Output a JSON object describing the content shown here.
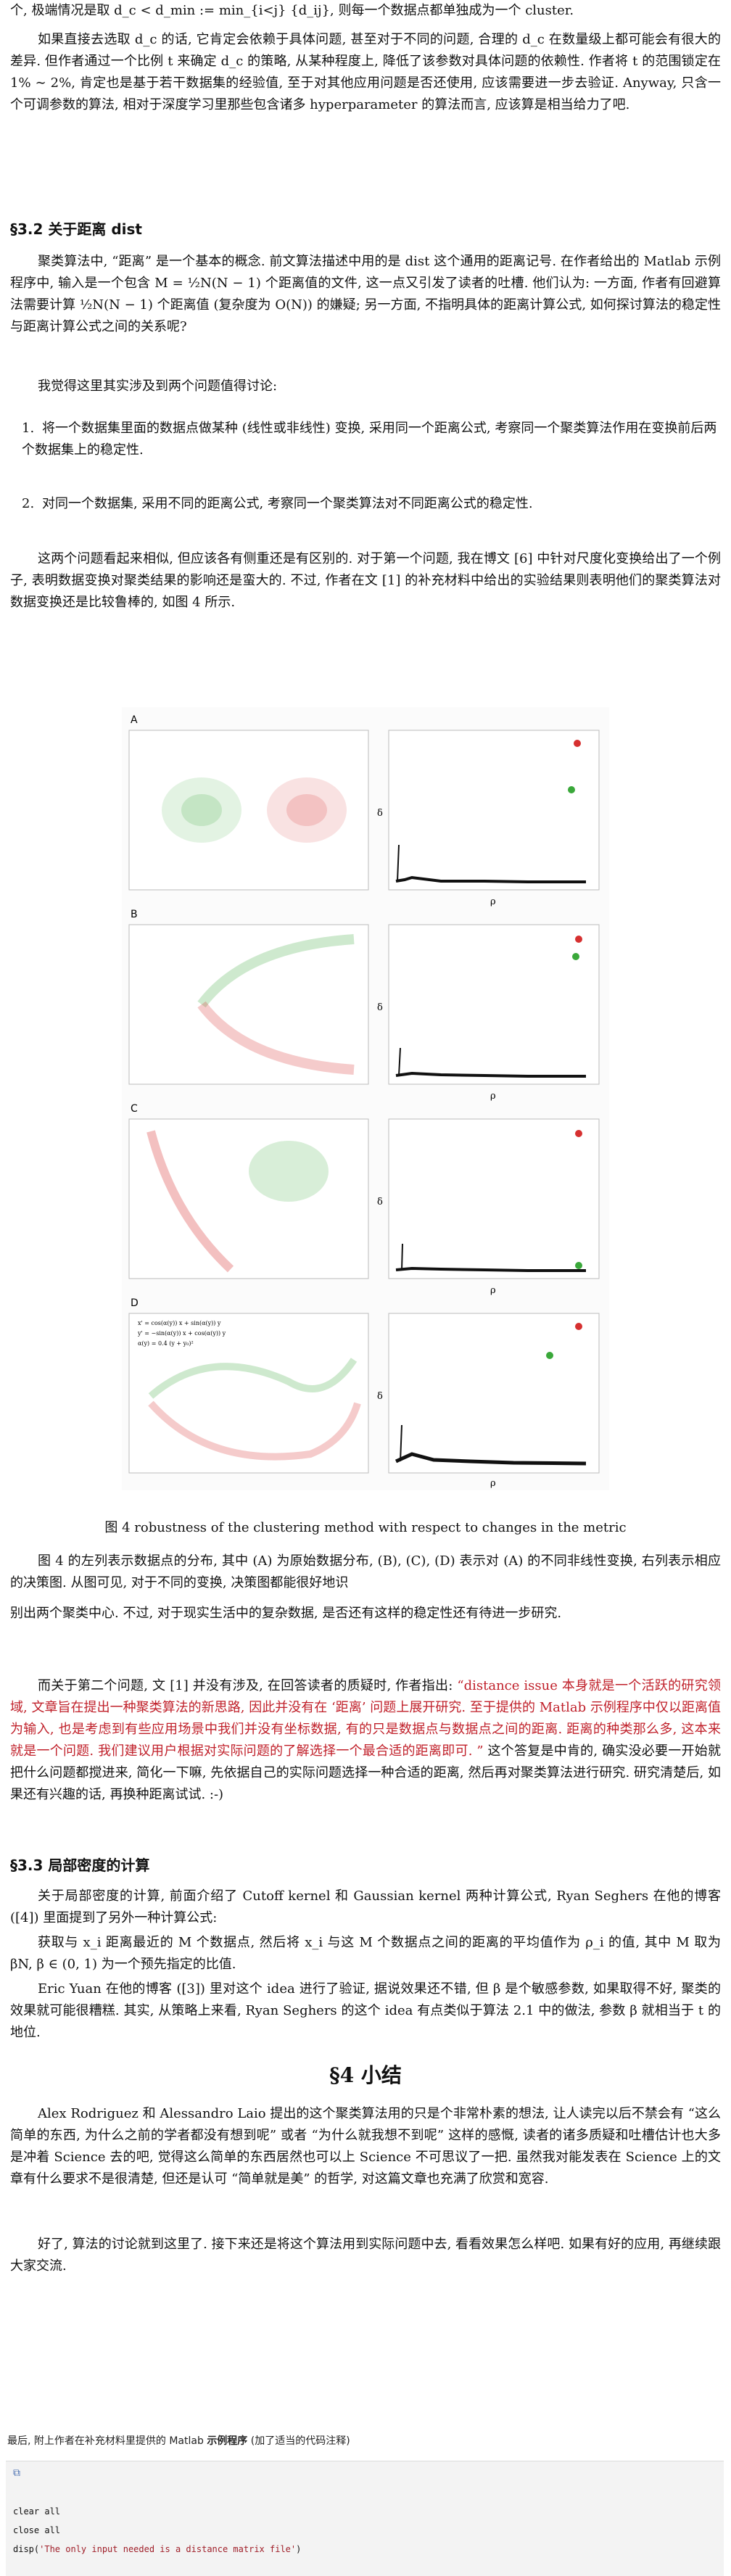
{
  "p0": "个, 极端情况是取 d_c < d_min := min_{i<j} {d_ij}, 则每一个数据点都单独成为一个 cluster.",
  "p1": "如果直接去选取 d_c 的话, 它肯定会依赖于具体问题, 甚至对于不同的问题, 合理的 d_c 在数量级上都可能会有很大的差异. 但作者通过一个比例 t 来确定 d_c 的策略, 从某种程度上, 降低了该参数对具体问题的依赖性. 作者将 t 的范围锁定在 1% ∼ 2%, 肯定也是基于若干数据集的经验值, 至于对其他应用问题是否还使用, 应该需要进一步去验证. Anyway, 只含一个可调参数的算法, 相对于深度学习里那些包含诸多 hyperparameter 的算法而言, 应该算是相当给力了吧.",
  "sec32": "§3.2 关于距离 dist",
  "p2": "聚类算法中, “距离” 是一个基本的概念. 前文算法描述中用的是 dist 这个通用的距离记号. 在作者给出的 Matlab 示例程序中, 输入是一个包含 M = ½N(N − 1) 个距离值的文件, 这一点又引发了读者的吐槽. 他们认为: 一方面, 作者有回避算法需要计算 ½N(N − 1) 个距离值 (复杂度为 O(N)) 的嫌疑; 另一方面, 不指明具体的距离计算公式, 如何探讨算法的稳定性与距离计算公式之间的关系呢?",
  "p3": "我觉得这里其实涉及到两个问题值得讨论:",
  "list": [
    {
      "num": "1.",
      "text": "将一个数据集里面的数据点做某种 (线性或非线性) 变换, 采用同一个距离公式, 考察同一个聚类算法作用在变换前后两个数据集上的稳定性."
    },
    {
      "num": "2.",
      "text": "对同一个数据集, 采用不同的距离公式, 考察同一个聚类算法对不同距离公式的稳定性."
    }
  ],
  "p4": "这两个问题看起来相似, 但应该各有侧重还是有区别的. 对于第一个问题, 我在博文 [6] 中针对尺度化变换给出了一个例子, 表明数据变换对聚类结果的影响还是蛮大的. 不过, 作者在文 [1] 的补充材料中给出的实验结果则表明他们的聚类算法对数据变换还是比较鲁棒的, 如图 4 所示.",
  "figure": {
    "panels": [
      "A",
      "B",
      "C",
      "D"
    ],
    "x_label": "ρ",
    "y_label": "δ",
    "formulas": [
      "x' = cos(α(y)) x + sin(α(y)) y",
      "y' = −sin(α(y)) x + cos(α(y)) y",
      "α(y) = 0.4 (y + y₀)²"
    ],
    "red": "#d63030",
    "green": "#3aa83a"
  },
  "caption": "图 4  robustness of the clustering method with respect to changes in the metric",
  "p5a": "图 4 的左列表示数据点的分布, 其中 (A) 为原始数据分布, (B), (C), (D) 表示对 (A) 的不同非线性变换, 右列表示相应的决策图. 从图可见, 对于不同的变换, 决策图都能很好地识",
  "p5b": "别出两个聚类中心. 不过, 对于现实生活中的复杂数据, 是否还有这样的稳定性还有待进一步研究.",
  "p6_pre": "而关于第二个问题, 文 [1] 并没有涉及, 在回答读者的质疑时, 作者指出: ",
  "p6_quote": "“distance issue 本身就是一个活跃的研究领域, 文章旨在提出一种聚类算法的新思路, 因此并没有在 ‘距离’ 问题上展开研究. 至于提供的 Matlab 示例程序中仅以距离值为输入, 也是考虑到有些应用场景中我们并没有坐标数据, 有的只是数据点与数据点之间的距离. 距离的种类那么多, 这本来就是一个问题. 我们建议用户根据对实际问题的了解选择一个最合适的距离即可. ”",
  "p6_post": " 这个答复是中肯的, 确实没必要一开始就把什么问题都搅进来, 简化一下嘛, 先依据自己的实际问题选择一种合适的距离, 然后再对聚类算法进行研究. 研究清楚后, 如果还有兴趣的话, 再换种距离试试. :-)",
  "sec33": "§3.3 局部密度的计算",
  "p7": "关于局部密度的计算, 前面介绍了 Cutoff kernel 和 Gaussian kernel 两种计算公式, Ryan Seghers 在他的博客 ([4]) 里面提到了另外一种计算公式:",
  "p8": "获取与 x_i 距离最近的 M 个数据点, 然后将 x_i 与这 M 个数据点之间的距离的平均值作为 ρ_i 的值, 其中 M 取为 βN, β ∈ (0, 1) 为一个预先指定的比值.",
  "p9": "Eric Yuan 在他的博客 ([3]) 里对这个 idea 进行了验证, 据说效果还不错, 但 β 是个敏感参数, 如果取得不好, 聚类的效果就可能很糟糕. 其实, 从策略上来看, Ryan Seghers 的这个 idea 有点类似于算法 2.1 中的做法, 参数 β 就相当于 t 的地位.",
  "sec4": "§4 小结",
  "p10": "Alex Rodriguez 和 Alessandro Laio 提出的这个聚类算法用的只是个非常朴素的想法, 让人读完以后不禁会有 “这么简单的东西, 为什么之前的学者都没有想到呢” 或者 “为什么就我想不到呢” 这样的感慨, 读者的诸多质疑和吐槽估计也大多是冲着 Science 去的吧, 觉得这么简单的东西居然也可以上 Science 不可思议了一把. 虽然我对能发表在 Science 上的文章有什么要求不是很清楚, 但还是认可 “简单就是美” 的哲学, 对这篇文章也充满了欣赏和宽容.",
  "p11": "好了, 算法的讨论就到这里了. 接下来还是将这个算法用到实际问题中去, 看看效果怎么样吧. 如果有好的应用, 再继续跟大家交流.",
  "footer_prefix": "最后, 附上作者在补充材料里提供的 Matlab ",
  "footer_bold": "示例程序",
  "footer_suffix": " (加了适当的代码注释)",
  "code": [
    "clear all",
    "close all"
  ],
  "code_last_pre": "disp(",
  "code_last_str": "'The only input needed is a distance matrix file'",
  "code_last_post": ")"
}
